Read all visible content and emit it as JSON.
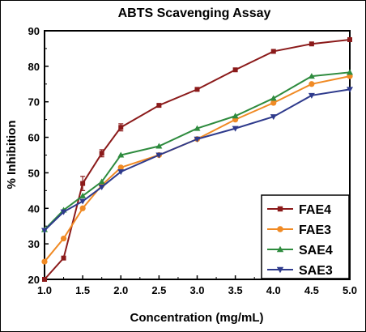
{
  "chart_data": {
    "type": "line",
    "title": "ABTS Scavenging Assay",
    "xlabel": "Concentration (mg/mL)",
    "ylabel": "% Inhibition",
    "xlim": [
      1.0,
      5.0
    ],
    "ylim": [
      20,
      90
    ],
    "x_ticks": [
      "1.0",
      "1.5",
      "2.0",
      "2.5",
      "3.0",
      "3.5",
      "4.0",
      "4.5",
      "5.0"
    ],
    "y_ticks": [
      "20",
      "30",
      "40",
      "50",
      "60",
      "70",
      "80",
      "90"
    ],
    "grid": false,
    "legend_position": "bottom-right",
    "x": [
      1.0,
      1.25,
      1.5,
      1.75,
      2.0,
      2.5,
      3.0,
      3.5,
      4.0,
      4.5,
      5.0
    ],
    "series": [
      {
        "name": "FAE4",
        "color": "#8B1A1A",
        "marker": "square",
        "values": [
          20.0,
          26.0,
          47.0,
          55.5,
          62.8,
          69.0,
          73.5,
          79.0,
          84.2,
          86.3,
          87.5
        ],
        "errors": [
          0,
          0,
          2.0,
          1.0,
          1.0,
          0,
          0,
          0,
          0,
          0,
          0
        ]
      },
      {
        "name": "FAE3",
        "color": "#F08A24",
        "marker": "circle",
        "values": [
          25.0,
          31.5,
          40.0,
          46.5,
          51.5,
          55.0,
          59.5,
          65.0,
          69.7,
          75.0,
          77.2
        ],
        "errors": [
          0,
          0,
          0,
          0,
          0,
          0,
          0,
          0,
          0,
          0,
          0
        ]
      },
      {
        "name": "SAE4",
        "color": "#2E8B3E",
        "marker": "triangle-up",
        "values": [
          34.0,
          39.5,
          43.5,
          47.5,
          55.0,
          57.5,
          62.5,
          66.0,
          71.0,
          77.2,
          78.3
        ],
        "errors": [
          0,
          0,
          0,
          0,
          0,
          0,
          0,
          0,
          0,
          0,
          0
        ]
      },
      {
        "name": "SAE3",
        "color": "#2E3A8C",
        "marker": "triangle-down",
        "values": [
          33.8,
          39.0,
          42.0,
          46.0,
          50.3,
          55.0,
          59.5,
          62.5,
          65.8,
          71.8,
          73.5
        ],
        "errors": [
          0,
          0,
          0,
          0,
          0,
          0,
          0,
          0,
          0,
          0,
          0
        ]
      }
    ]
  }
}
